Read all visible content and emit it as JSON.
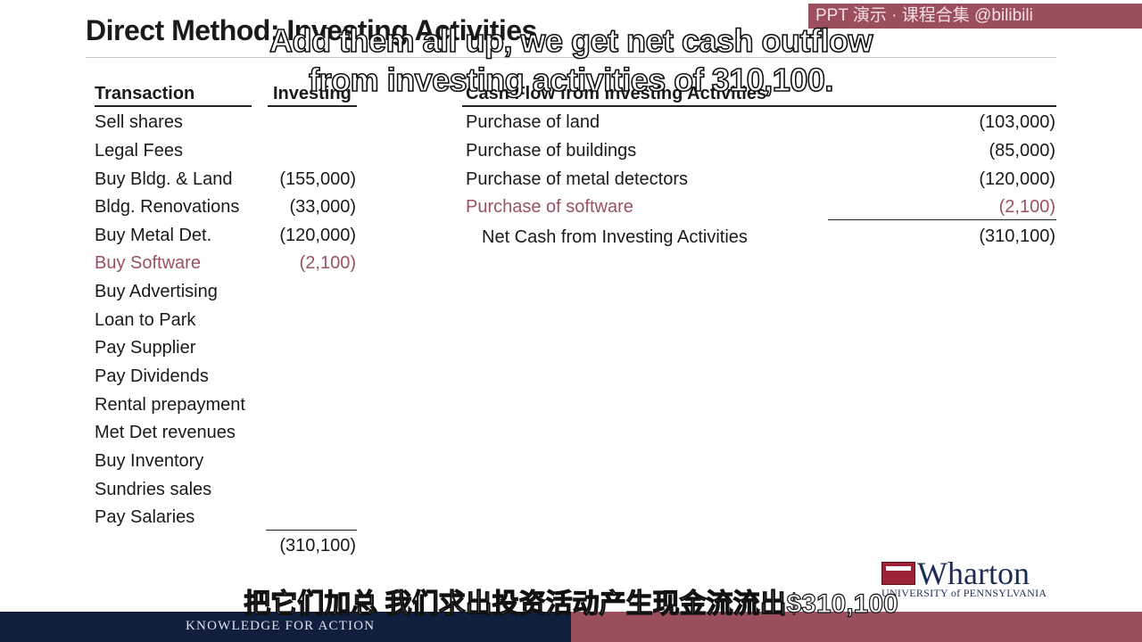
{
  "slide": {
    "title": "Direct Method: Investing Activities",
    "watermark": "PPT 演示 · 课程合集 @bilibili"
  },
  "left_table": {
    "header_transaction": "Transaction",
    "header_investing": "Investing",
    "rows": [
      {
        "label": "Sell shares",
        "amount": ""
      },
      {
        "label": "Legal Fees",
        "amount": ""
      },
      {
        "label": "Buy Bldg. & Land",
        "amount": "(155,000)"
      },
      {
        "label": "Bldg. Renovations",
        "amount": "(33,000)"
      },
      {
        "label": "Buy Metal Det.",
        "amount": "(120,000)"
      },
      {
        "label": "Buy Software",
        "amount": "(2,100)"
      },
      {
        "label": "Buy Advertising",
        "amount": ""
      },
      {
        "label": "Loan to Park",
        "amount": ""
      },
      {
        "label": "Pay Supplier",
        "amount": ""
      },
      {
        "label": "Pay Dividends",
        "amount": ""
      },
      {
        "label": "Rental prepayment",
        "amount": ""
      },
      {
        "label": "Met Det revenues",
        "amount": ""
      },
      {
        "label": "Buy Inventory",
        "amount": ""
      },
      {
        "label": "Sundries sales",
        "amount": ""
      },
      {
        "label": "Pay Salaries",
        "amount": ""
      }
    ],
    "total": "(310,100)"
  },
  "right_table": {
    "header": "Cash Flow from Investing Activities",
    "rows": [
      {
        "label": "Purchase of land",
        "amount": "(103,000)"
      },
      {
        "label": "Purchase of buildings",
        "amount": "(85,000)"
      },
      {
        "label": "Purchase of metal detectors",
        "amount": "(120,000)"
      },
      {
        "label": "Purchase of software",
        "amount": "(2,100)"
      }
    ],
    "net_label": "Net Cash from Investing Activities",
    "net_amount": "(310,100)"
  },
  "captions": {
    "english": "Add them all up, we get net cash outflow from investing activities of 310,100.",
    "chinese": "把它们加总 我们求出投资活动产生现金流流出$310,100"
  },
  "branding": {
    "logo_word": "Wharton",
    "logo_sub": "UNIVERSITY of PENNSYLVANIA",
    "footer_tagline": "KNOWLEDGE FOR ACTION"
  },
  "colors": {
    "highlight": "#9b5260",
    "footer_navy": "#0f1f3d",
    "footer_maroon": "#9b4e5c"
  }
}
